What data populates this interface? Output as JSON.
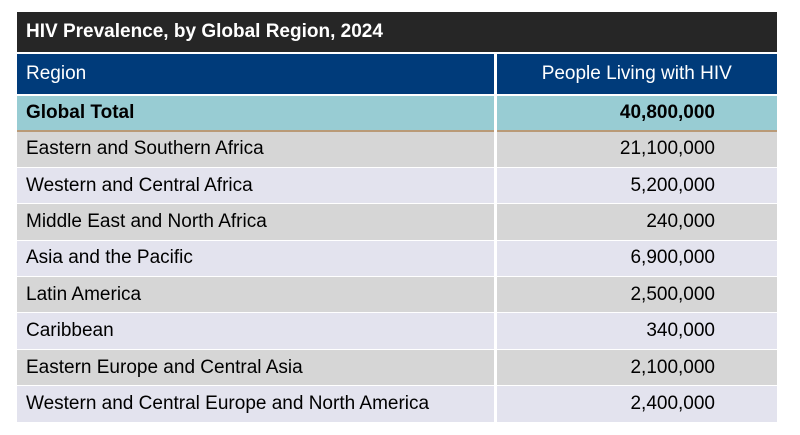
{
  "title": "HIV Prevalence, by Global Region, 2024",
  "columns": {
    "region": "Region",
    "value": "People Living with HIV"
  },
  "total": {
    "region": "Global Total",
    "value": "40,800,000"
  },
  "rows": [
    {
      "region": "Eastern and Southern Africa",
      "value": "21,100,000"
    },
    {
      "region": "Western and Central Africa",
      "value": "5,200,000"
    },
    {
      "region": "Middle East and North Africa",
      "value": "240,000"
    },
    {
      "region": "Asia and the Pacific",
      "value": "6,900,000"
    },
    {
      "region": "Latin America",
      "value": "2,500,000"
    },
    {
      "region": "Caribbean",
      "value": "340,000"
    },
    {
      "region": "Eastern Europe and Central Asia",
      "value": "2,100,000"
    },
    {
      "region": "Western and Central Europe and North America",
      "value": "2,400,000"
    }
  ],
  "colors": {
    "title_bar": "#262626",
    "header": "#003b7a",
    "total_row": "#98ccd3",
    "row_even": "#d6d6d6",
    "row_odd": "#e3e3ee"
  }
}
